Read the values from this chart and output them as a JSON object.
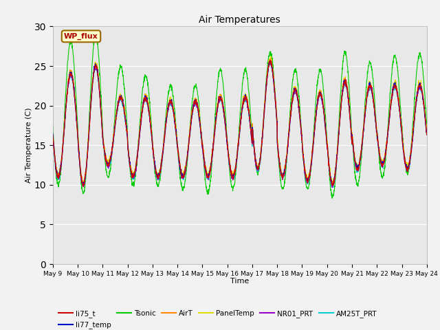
{
  "title": "Air Temperatures",
  "xlabel": "Time",
  "ylabel": "Air Temperature (C)",
  "ylim": [
    0,
    30
  ],
  "yticks": [
    0,
    5,
    10,
    15,
    20,
    25,
    30
  ],
  "x_days": [
    "May 9",
    "May 10",
    "May 11",
    "May 12",
    "May 13",
    "May 14",
    "May 15",
    "May 16",
    "May 17",
    "May 18",
    "May 19",
    "May 20",
    "May 21",
    "May 22",
    "May 23",
    "May 24"
  ],
  "annotation_text": "WP_flux",
  "annotation_color": "#aa0000",
  "annotation_bg": "#ffffcc",
  "annotation_border": "#996600",
  "series_colors": {
    "li75_t": "#cc0000",
    "li77_temp": "#0000cc",
    "Tsonic": "#00cc00",
    "AirT": "#ff8800",
    "PanelTemp": "#dddd00",
    "NR01_PRT": "#9900cc",
    "AM25T_PRT": "#00cccc"
  },
  "background_color": "#e8e8e8",
  "figure_bg": "#f2f2f2",
  "tsonic_peaks": [
    28.0,
    29.0,
    25.0,
    23.8,
    22.5,
    22.5,
    24.5,
    24.5,
    26.7,
    24.5,
    24.5,
    26.7,
    25.5,
    26.3,
    26.5,
    26.5
  ],
  "tsonic_troughs": [
    10.0,
    9.0,
    11.0,
    10.0,
    10.0,
    9.5,
    9.0,
    9.5,
    11.5,
    9.5,
    9.5,
    8.5,
    10.0,
    11.0,
    11.5,
    12.0
  ],
  "other_peaks": [
    24.0,
    25.0,
    21.0,
    21.0,
    20.5,
    20.5,
    21.0,
    21.0,
    25.5,
    22.0,
    21.5,
    23.0,
    22.5,
    22.5,
    22.5,
    22.5
  ],
  "other_troughs": [
    11.0,
    10.0,
    12.5,
    11.0,
    11.0,
    11.0,
    11.0,
    11.0,
    12.0,
    11.0,
    10.5,
    10.0,
    12.0,
    12.5,
    12.0,
    12.5
  ]
}
